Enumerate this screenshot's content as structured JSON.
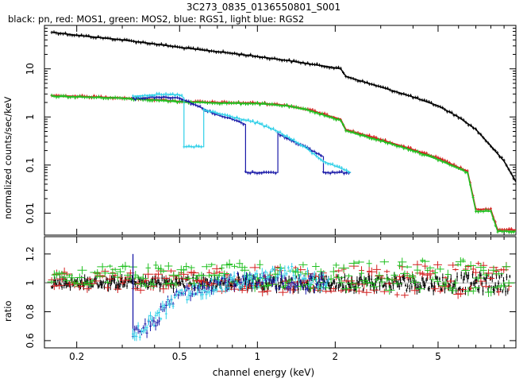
{
  "chart_data": [
    {
      "type": "line",
      "panel": "spectrum",
      "title": "3C273_0835_0136550801_S001",
      "subtitle": "black: pn, red: MOS1, green: MOS2, blue: RGS1, light blue: RGS2",
      "xlabel": "channel energy (keV)",
      "ylabel": "normalized counts/sec/keV",
      "xscale": "log",
      "yscale": "log",
      "xlim": [
        0.15,
        10
      ],
      "ylim": [
        0.0035,
        80
      ],
      "x_ticks": [
        {
          "value": 0.2,
          "label": "0.2"
        },
        {
          "value": 0.5,
          "label": "0.5"
        },
        {
          "value": 1,
          "label": "1"
        },
        {
          "value": 2,
          "label": "2"
        },
        {
          "value": 5,
          "label": "5"
        }
      ],
      "y_ticks": [
        {
          "value": 0.01,
          "label": "0.01"
        },
        {
          "value": 0.1,
          "label": "0.1"
        },
        {
          "value": 1,
          "label": "1"
        },
        {
          "value": 10,
          "label": "10"
        }
      ],
      "series": [
        {
          "name": "pn",
          "color": "#000000",
          "x": [
            0.16,
            0.2,
            0.3,
            0.4,
            0.5,
            0.6,
            0.8,
            1.0,
            1.3,
            1.7,
            1.9,
            2.1,
            2.2,
            2.3,
            2.5,
            3.0,
            4.0,
            5.0,
            6.0,
            7.0,
            8.0,
            9.0,
            10.0
          ],
          "y": [
            58,
            50,
            40,
            33,
            28,
            25,
            21,
            18,
            15,
            12,
            11,
            10,
            7,
            6.5,
            5.6,
            4.2,
            2.6,
            1.7,
            1.0,
            0.55,
            0.25,
            0.12,
            0.045
          ]
        },
        {
          "name": "MOS1",
          "color": "#d42020",
          "x": [
            0.16,
            0.3,
            0.4,
            0.5,
            0.6,
            0.7,
            1.0,
            1.3,
            1.6,
            1.9,
            2.1,
            2.2,
            2.4,
            3.0,
            4.0,
            5.0,
            6.0,
            6.5,
            7.0,
            8.0,
            8.5,
            10.0
          ],
          "y": [
            2.8,
            2.5,
            2.3,
            2.1,
            2.05,
            2.0,
            1.95,
            1.75,
            1.4,
            1.05,
            0.9,
            0.55,
            0.48,
            0.34,
            0.21,
            0.14,
            0.09,
            0.075,
            0.012,
            0.012,
            0.0045,
            0.0045
          ]
        },
        {
          "name": "MOS2",
          "color": "#22c022",
          "x": [
            0.16,
            0.3,
            0.4,
            0.5,
            0.6,
            0.7,
            1.0,
            1.3,
            1.6,
            1.9,
            2.1,
            2.2,
            2.4,
            3.0,
            4.0,
            5.0,
            6.0,
            6.5,
            7.0,
            8.0,
            8.5,
            10.0
          ],
          "y": [
            2.7,
            2.45,
            2.25,
            2.05,
            2.0,
            1.95,
            1.9,
            1.7,
            1.35,
            1.0,
            0.85,
            0.52,
            0.45,
            0.32,
            0.2,
            0.13,
            0.085,
            0.07,
            0.011,
            0.011,
            0.0042,
            0.0042
          ]
        },
        {
          "name": "RGS1",
          "color": "#1a1aa8",
          "x": [
            0.33,
            0.4,
            0.5,
            0.6,
            0.7,
            0.8,
            0.9,
            0.9,
            1.2,
            1.2,
            1.5,
            1.8,
            1.8,
            2.3
          ],
          "y": [
            2.4,
            2.6,
            2.5,
            1.6,
            1.1,
            0.9,
            0.7,
            0.07,
            0.07,
            0.45,
            0.25,
            0.15,
            0.07,
            0.07
          ]
        },
        {
          "name": "RGS2",
          "color": "#30d0e8",
          "x": [
            0.33,
            0.4,
            0.5,
            0.52,
            0.52,
            0.62,
            0.62,
            0.7,
            0.8,
            1.0,
            1.2,
            1.5,
            1.8,
            2.3
          ],
          "y": [
            2.7,
            2.9,
            2.9,
            2.5,
            0.24,
            0.24,
            1.4,
            1.2,
            1.0,
            0.75,
            0.5,
            0.25,
            0.12,
            0.07
          ]
        }
      ]
    },
    {
      "type": "scatter",
      "panel": "residuals",
      "xlabel": "channel energy (keV)",
      "ylabel": "ratio",
      "xscale": "log",
      "yscale": "linear",
      "xlim": [
        0.15,
        10
      ],
      "ylim": [
        0.55,
        1.32
      ],
      "x_ticks": [
        {
          "value": 0.2,
          "label": "0.2"
        },
        {
          "value": 0.5,
          "label": "0.5"
        },
        {
          "value": 1,
          "label": "1"
        },
        {
          "value": 2,
          "label": "2"
        },
        {
          "value": 5,
          "label": "5"
        }
      ],
      "y_ticks": [
        {
          "value": 0.6,
          "label": "0.6"
        },
        {
          "value": 0.8,
          "label": "0.8"
        },
        {
          "value": 1.0,
          "label": "1"
        },
        {
          "value": 1.2,
          "label": "1.2"
        }
      ],
      "reference_line": 1.0,
      "series": [
        {
          "name": "pn",
          "color": "#000000",
          "x_range": [
            0.16,
            9.5
          ],
          "level": 1.0,
          "scatter": 0.03
        },
        {
          "name": "MOS1",
          "color": "#d42020",
          "x_range": [
            0.16,
            9.5
          ],
          "level": 1.02,
          "scatter": 0.06
        },
        {
          "name": "MOS2",
          "color": "#22c022",
          "x_range": [
            0.16,
            9.5
          ],
          "level": 1.05,
          "scatter": 0.06
        },
        {
          "name": "RGS1",
          "color": "#1a1aa8",
          "x_range": [
            0.33,
            1.9
          ],
          "x": [
            0.33,
            0.35,
            0.37,
            0.4,
            0.43,
            0.46,
            0.5,
            0.55,
            0.6,
            0.7,
            0.8,
            1.0,
            1.3,
            1.6,
            1.9
          ],
          "y": [
            0.62,
            0.66,
            0.68,
            0.74,
            0.8,
            0.86,
            0.92,
            0.95,
            0.98,
            1.0,
            1.02,
            1.0,
            1.01,
            1.0,
            1.0
          ]
        },
        {
          "name": "RGS2",
          "color": "#30d0e8",
          "x_range": [
            0.33,
            1.9
          ],
          "x": [
            0.33,
            0.35,
            0.37,
            0.4,
            0.43,
            0.46,
            0.5,
            0.55,
            0.6,
            0.7,
            0.8,
            1.0,
            1.3,
            1.6,
            1.9
          ],
          "y": [
            0.62,
            0.67,
            0.71,
            0.75,
            0.8,
            0.85,
            0.9,
            0.93,
            0.96,
            0.98,
            1.0,
            1.02,
            1.08,
            1.03,
            1.0
          ]
        }
      ]
    }
  ]
}
